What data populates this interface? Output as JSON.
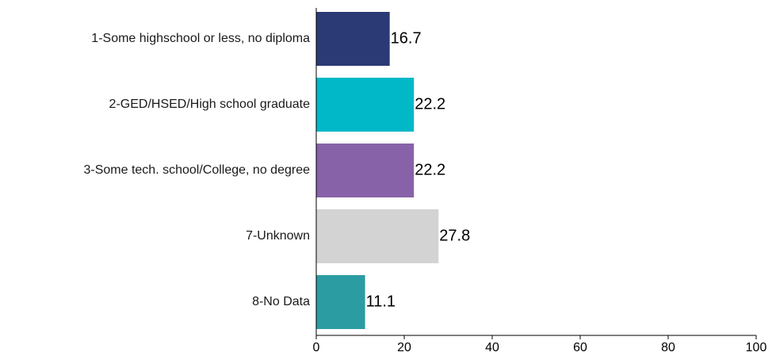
{
  "chart_data": {
    "type": "bar",
    "orientation": "horizontal",
    "title": "",
    "xlabel": "",
    "ylabel": "",
    "categories": [
      "1-Some highschool or less, no diploma",
      "2-GED/HSED/High school graduate",
      "3-Some tech. school/College, no degree",
      "7-Unknown",
      "8-No Data"
    ],
    "values": [
      16.7,
      22.2,
      22.2,
      27.8,
      11.1
    ],
    "value_labels": [
      "16.7",
      "22.2",
      "22.2",
      "27.8",
      "11.1"
    ],
    "colors": [
      "#2b3a75",
      "#00b8c8",
      "#8862a8",
      "#d3d3d4",
      "#2a9ca2"
    ],
    "xlim": [
      0,
      100
    ],
    "xticks": [
      0,
      20,
      40,
      60,
      80,
      100
    ],
    "xtick_labels": [
      "0",
      "20",
      "40",
      "60",
      "80",
      "100"
    ],
    "grid": false,
    "legend": "none"
  }
}
